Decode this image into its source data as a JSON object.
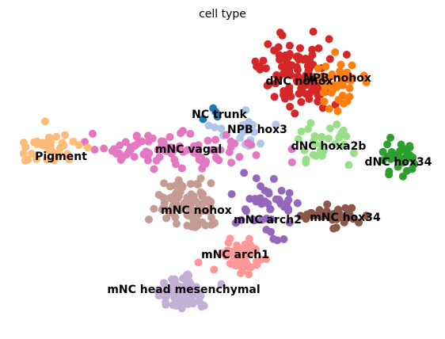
{
  "chart_data": {
    "type": "scatter",
    "title": "cell type",
    "xlabel": "",
    "ylabel": "",
    "axes_visible": false,
    "legend": "on data",
    "series": [
      {
        "name": "mNC head mesenchymal",
        "color": "#c5b0d5",
        "center": [
          232,
          368
        ],
        "spread": [
          38,
          28
        ],
        "n": 70
      },
      {
        "name": "mNC arch1",
        "color": "#ff9896",
        "center": [
          305,
          325
        ],
        "spread": [
          30,
          30
        ],
        "n": 55
      },
      {
        "name": "mNC nohox",
        "color": "#c49c94",
        "center": [
          238,
          258
        ],
        "spread": [
          45,
          42
        ],
        "n": 90
      },
      {
        "name": "mNC arch2",
        "color": "#9467bd",
        "center": [
          335,
          260
        ],
        "spread": [
          38,
          40
        ],
        "n": 45
      },
      {
        "name": "mNC hox34",
        "color": "#8c564b",
        "center": [
          425,
          272
        ],
        "spread": [
          40,
          20
        ],
        "n": 40
      },
      {
        "name": "dNC hox34",
        "color": "#2ca02c",
        "center": [
          505,
          200
        ],
        "spread": [
          35,
          25
        ],
        "n": 30
      },
      {
        "name": "dNC hoxa2b",
        "color": "#98df8a",
        "center": [
          410,
          182
        ],
        "spread": [
          35,
          30
        ],
        "n": 30
      },
      {
        "name": "dNC nohox",
        "color": "#d62728",
        "center": [
          375,
          92
        ],
        "spread": [
          50,
          45
        ],
        "n": 110
      },
      {
        "name": "NPB nohox",
        "color": "#ff7f0e",
        "center": [
          428,
          100
        ],
        "spread": [
          40,
          45
        ],
        "n": 40
      },
      {
        "name": "NPB hox3",
        "color": "#aec7e8",
        "center": [
          310,
          170
        ],
        "spread": [
          50,
          25
        ],
        "n": 20
      },
      {
        "name": "NC trunk",
        "color": "#1f77b4",
        "center": [
          268,
          143
        ],
        "spread": [
          14,
          10
        ],
        "n": 4
      },
      {
        "name": "mNC vagal",
        "color": "#e377c2",
        "center": [
          220,
          190
        ],
        "spread": [
          110,
          25
        ],
        "n": 90
      },
      {
        "name": "Pigment",
        "color": "#ffbb78",
        "center": [
          65,
          188
        ],
        "spread": [
          35,
          20
        ],
        "n": 40
      }
    ],
    "labels": [
      {
        "text": "dNC nohox",
        "series": "dNC nohox",
        "anchor": [
          378,
          102
        ]
      },
      {
        "text": "NPB nohox",
        "series": "NPB nohox",
        "anchor": [
          426,
          98
        ]
      },
      {
        "text": "NC trunk",
        "series": "NC trunk",
        "anchor": [
          277,
          144
        ]
      },
      {
        "text": "NPB hox3",
        "series": "NPB hox3",
        "anchor": [
          325,
          163
        ]
      },
      {
        "text": "dNC hoxa2b",
        "series": "dNC hoxa2b",
        "anchor": [
          415,
          184
        ]
      },
      {
        "text": "dNC hox34",
        "series": "dNC hox34",
        "anchor": [
          503,
          204
        ]
      },
      {
        "text": "Pigment",
        "series": "Pigment",
        "anchor": [
          77,
          197
        ]
      },
      {
        "text": "mNC vagal",
        "series": "mNC vagal",
        "anchor": [
          238,
          188
        ]
      },
      {
        "text": "mNC nohox",
        "series": "mNC nohox",
        "anchor": [
          248,
          265
        ]
      },
      {
        "text": "mNC arch2",
        "series": "mNC arch2",
        "anchor": [
          338,
          277
        ]
      },
      {
        "text": "mNC hox34",
        "series": "mNC hox34",
        "anchor": [
          436,
          274
        ]
      },
      {
        "text": "mNC arch1",
        "series": "mNC arch1",
        "anchor": [
          297,
          321
        ]
      },
      {
        "text": "mNC head mesenchymal",
        "series": "mNC head mesenchymal",
        "anchor": [
          232,
          365
        ]
      }
    ]
  }
}
